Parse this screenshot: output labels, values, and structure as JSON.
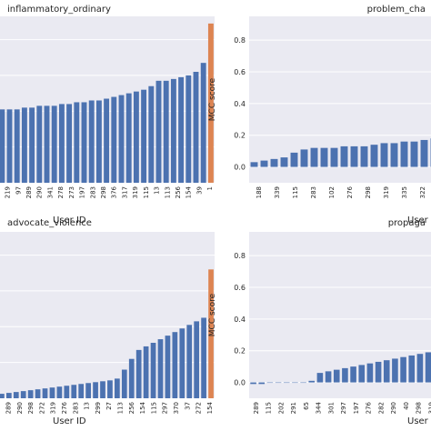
{
  "chart_data": [
    {
      "type": "bar",
      "title": "inflammatory_ordinary",
      "title_align": "left",
      "xlabel": "User ID",
      "ylabel": "",
      "ylim": [
        0,
        0.93
      ],
      "yticks": [],
      "grid": true,
      "background": "#eaeaf2",
      "categories": [
        "271",
        "219",
        "97",
        "289",
        "290",
        "341",
        "278",
        "273",
        "197",
        "283",
        "298",
        "376",
        "317",
        "319",
        "115",
        "13",
        "113",
        "256",
        "154",
        "39",
        "1"
      ],
      "highlight_color": "#dd8452",
      "highlight_category": "1",
      "bars": [
        {
          "category": "",
          "value": 0.4
        },
        {
          "category": "",
          "value": 0.41
        },
        {
          "category": "271",
          "value": 0.41
        },
        {
          "category": "219",
          "value": 0.41
        },
        {
          "category": "97",
          "value": 0.42
        },
        {
          "category": "289",
          "value": 0.42
        },
        {
          "category": "",
          "value": 0.43
        },
        {
          "category": "290",
          "value": 0.43
        },
        {
          "category": "341",
          "value": 0.43
        },
        {
          "category": "",
          "value": 0.44
        },
        {
          "category": "278",
          "value": 0.44
        },
        {
          "category": "273",
          "value": 0.45
        },
        {
          "category": "",
          "value": 0.45
        },
        {
          "category": "197",
          "value": 0.46
        },
        {
          "category": "283",
          "value": 0.46
        },
        {
          "category": "",
          "value": 0.47
        },
        {
          "category": "298",
          "value": 0.48
        },
        {
          "category": "376",
          "value": 0.49
        },
        {
          "category": "",
          "value": 0.5
        },
        {
          "category": "317",
          "value": 0.51
        },
        {
          "category": "319",
          "value": 0.52
        },
        {
          "category": "",
          "value": 0.54
        },
        {
          "category": "115",
          "value": 0.57
        },
        {
          "category": "13",
          "value": 0.57
        },
        {
          "category": "113",
          "value": 0.58
        },
        {
          "category": "",
          "value": 0.59
        },
        {
          "category": "256",
          "value": 0.6
        },
        {
          "category": "154",
          "value": 0.62
        },
        {
          "category": "39",
          "value": 0.67
        },
        {
          "category": "1",
          "value": 0.89
        }
      ],
      "xtick_labels": [
        "271",
        "219",
        "97",
        "289",
        "290",
        "341",
        "278",
        "273",
        "197",
        "283",
        "298",
        "376",
        "317",
        "319",
        "115",
        "13",
        "113",
        "256",
        "154",
        "39",
        "1"
      ]
    },
    {
      "type": "bar",
      "title": "problem_cha",
      "title_align": "center",
      "xlabel": "User",
      "ylabel": "MCC score",
      "ylim": [
        -0.1,
        0.95
      ],
      "yticks": [
        0.0,
        0.2,
        0.4,
        0.6,
        0.8
      ],
      "ytick_labels": [
        "0.0",
        "0.2",
        "0.4",
        "0.6",
        "0.8"
      ],
      "grid": true,
      "background": "#eaeaf2",
      "bars": [
        {
          "category": "188",
          "value": 0.03
        },
        {
          "category": "339",
          "value": 0.04
        },
        {
          "category": "115",
          "value": 0.05
        },
        {
          "category": "",
          "value": 0.06
        },
        {
          "category": "283",
          "value": 0.09
        },
        {
          "category": "102",
          "value": 0.11
        },
        {
          "category": "",
          "value": 0.12
        },
        {
          "category": "276",
          "value": 0.12
        },
        {
          "category": "",
          "value": 0.12
        },
        {
          "category": "298",
          "value": 0.13
        },
        {
          "category": "",
          "value": 0.13
        },
        {
          "category": "319",
          "value": 0.13
        },
        {
          "category": "",
          "value": 0.14
        },
        {
          "category": "335",
          "value": 0.15
        },
        {
          "category": "",
          "value": 0.15
        },
        {
          "category": "322",
          "value": 0.16
        },
        {
          "category": "",
          "value": 0.16
        },
        {
          "category": "197",
          "value": 0.17
        },
        {
          "category": "",
          "value": 0.18
        },
        {
          "category": "",
          "value": 0.2
        }
      ],
      "xtick_labels": [
        "188",
        "339",
        "115",
        "283",
        "102",
        "276",
        "298",
        "319",
        "335",
        "322",
        "197"
      ]
    },
    {
      "type": "bar",
      "title": "advocate_violence",
      "title_align": "left",
      "xlabel": "User ID",
      "ylabel": "",
      "ylim": [
        0,
        0.93
      ],
      "yticks": [],
      "grid": true,
      "background": "#eaeaf2",
      "highlight_color": "#dd8452",
      "highlight_category": "1",
      "bars": [
        {
          "category": "",
          "value": 0.02
        },
        {
          "category": "",
          "value": 0.025
        },
        {
          "category": "37",
          "value": 0.03
        },
        {
          "category": "",
          "value": 0.035
        },
        {
          "category": "289",
          "value": 0.04
        },
        {
          "category": "",
          "value": 0.045
        },
        {
          "category": "290",
          "value": 0.05
        },
        {
          "category": "",
          "value": 0.055
        },
        {
          "category": "298",
          "value": 0.06
        },
        {
          "category": "",
          "value": 0.065
        },
        {
          "category": "272",
          "value": 0.07
        },
        {
          "category": "",
          "value": 0.075
        },
        {
          "category": "319",
          "value": 0.08
        },
        {
          "category": "",
          "value": 0.085
        },
        {
          "category": "276",
          "value": 0.09
        },
        {
          "category": "",
          "value": 0.095
        },
        {
          "category": "",
          "value": 0.1
        },
        {
          "category": "283",
          "value": 0.11
        },
        {
          "category": "",
          "value": 0.16
        },
        {
          "category": "",
          "value": 0.22
        },
        {
          "category": "",
          "value": 0.27
        },
        {
          "category": "",
          "value": 0.29
        },
        {
          "category": "",
          "value": 0.31
        },
        {
          "category": "",
          "value": 0.33
        },
        {
          "category": "",
          "value": 0.35
        },
        {
          "category": "",
          "value": 0.37
        },
        {
          "category": "",
          "value": 0.39
        },
        {
          "category": "",
          "value": 0.41
        },
        {
          "category": "",
          "value": 0.43
        },
        {
          "category": "",
          "value": 0.45
        },
        {
          "category": "1",
          "value": 0.72
        }
      ],
      "xtick_labels": [
        "37",
        "289",
        "290",
        "298",
        "272",
        "319",
        "276",
        "283",
        "13",
        "299",
        "27",
        "113",
        "256",
        "154",
        "115",
        "297",
        "370",
        "37",
        "272",
        "154"
      ]
    },
    {
      "type": "bar",
      "title": "propaga",
      "title_align": "center",
      "xlabel": "User",
      "ylabel": "MCC score",
      "ylim": [
        -0.1,
        0.95
      ],
      "yticks": [
        0.0,
        0.2,
        0.4,
        0.6,
        0.8
      ],
      "ytick_labels": [
        "0.0",
        "0.2",
        "0.4",
        "0.6",
        "0.8"
      ],
      "grid": true,
      "background": "#eaeaf2",
      "bars": [
        {
          "category": "289",
          "value": -0.01
        },
        {
          "category": "115",
          "value": -0.01
        },
        {
          "category": "202",
          "value": 0.0
        },
        {
          "category": "291",
          "value": 0.0
        },
        {
          "category": "65",
          "value": 0.0
        },
        {
          "category": "344",
          "value": 0.0
        },
        {
          "category": "301",
          "value": 0.0
        },
        {
          "category": "297",
          "value": 0.01
        },
        {
          "category": "197",
          "value": 0.06
        },
        {
          "category": "",
          "value": 0.07
        },
        {
          "category": "",
          "value": 0.08
        },
        {
          "category": "",
          "value": 0.09
        },
        {
          "category": "",
          "value": 0.1
        },
        {
          "category": "",
          "value": 0.11
        },
        {
          "category": "",
          "value": 0.12
        },
        {
          "category": "",
          "value": 0.13
        },
        {
          "category": "",
          "value": 0.14
        },
        {
          "category": "",
          "value": 0.15
        },
        {
          "category": "",
          "value": 0.16
        },
        {
          "category": "",
          "value": 0.17
        },
        {
          "category": "",
          "value": 0.18
        },
        {
          "category": "",
          "value": 0.19
        },
        {
          "category": "",
          "value": 0.2
        },
        {
          "category": "",
          "value": 0.21
        }
      ],
      "xtick_labels": [
        "289",
        "115",
        "202",
        "291",
        "65",
        "344",
        "301",
        "297",
        "197",
        "276",
        "282",
        "290",
        "40",
        "298",
        "319",
        "376"
      ]
    }
  ],
  "colors": {
    "bar": "#4c72b0",
    "highlight": "#dd8452",
    "plot_bg": "#eaeaf2",
    "grid": "#ffffff",
    "text": "#262626"
  }
}
